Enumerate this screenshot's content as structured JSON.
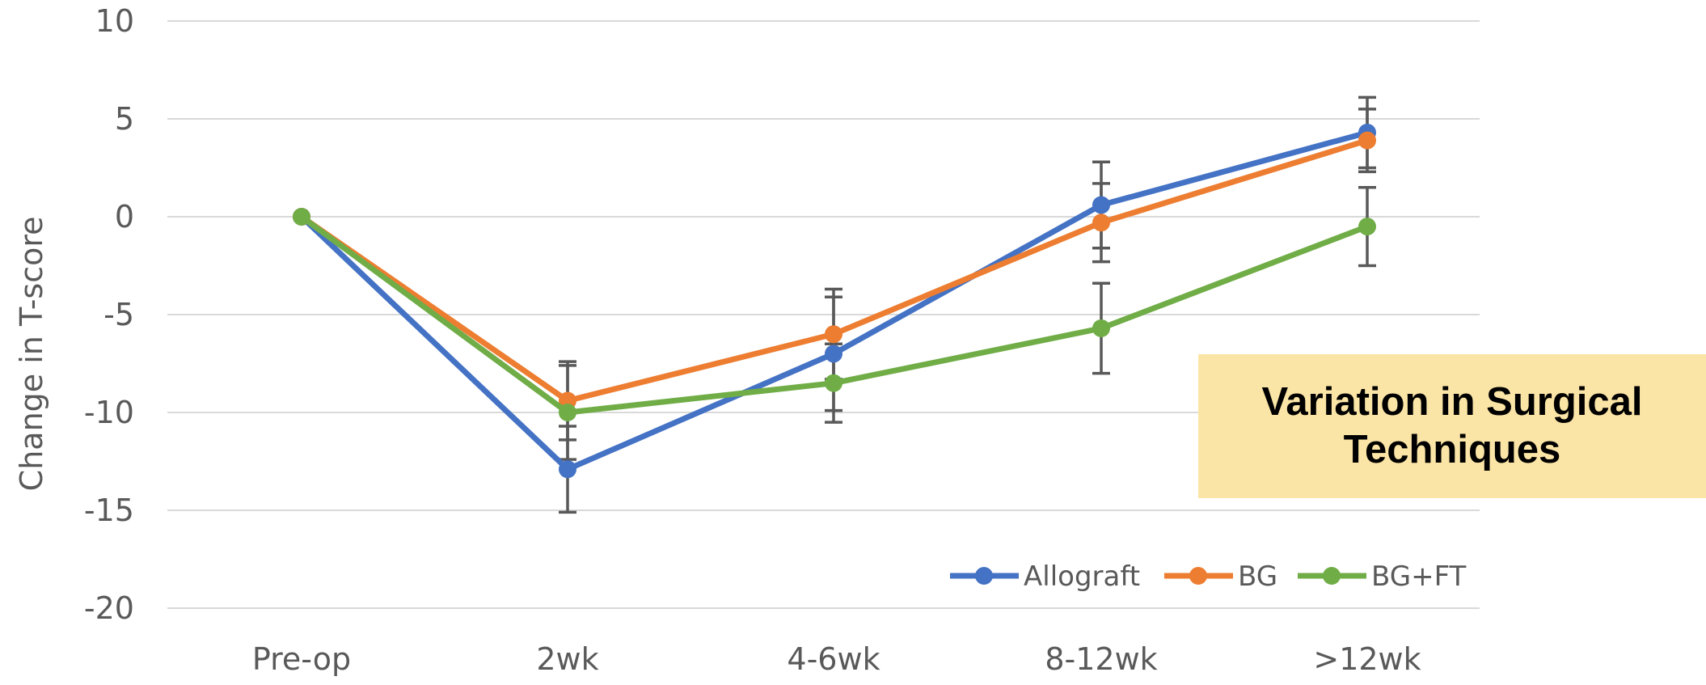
{
  "chart_data": {
    "type": "line",
    "categories": [
      "Pre-op",
      "2wk",
      "4-6wk",
      "8-12wk",
      ">12wk"
    ],
    "ylabel": "Change in T-score",
    "ylim": [
      -20,
      10
    ],
    "yticks": [
      10,
      5,
      0,
      -5,
      -10,
      -15,
      -20
    ],
    "grid": true,
    "legend_position": "bottom-right",
    "series": [
      {
        "name": "Allograft",
        "color": "#4472c4",
        "values": [
          0,
          -12.9,
          -7.0,
          0.6,
          4.3
        ],
        "error": [
          null,
          2.2,
          2.9,
          2.2,
          1.8
        ]
      },
      {
        "name": "BG",
        "color": "#ed7d31",
        "values": [
          0,
          -9.4,
          -6.0,
          -0.3,
          3.9
        ],
        "error": [
          null,
          2.0,
          2.3,
          2.0,
          1.6
        ]
      },
      {
        "name": "BG+FT",
        "color": "#70ad47",
        "values": [
          0,
          -10.0,
          -8.5,
          -5.7,
          -0.5
        ],
        "error": [
          null,
          2.4,
          2.0,
          2.3,
          2.0
        ]
      }
    ]
  },
  "callout": {
    "line1": "Variation in Surgical",
    "line2": "Techniques"
  }
}
